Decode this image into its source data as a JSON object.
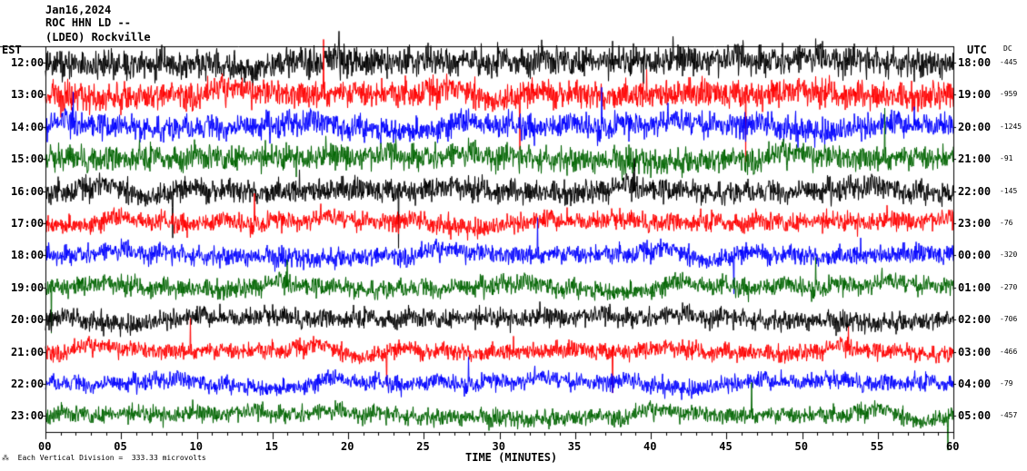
{
  "header": {
    "date": "Jan16,2024",
    "station": "ROC HHN LD --",
    "network": "(LDEO) Rockville"
  },
  "left_timezone": "EST",
  "right_timezone": "UTC",
  "dc_header": "DC",
  "x_axis_label": "TIME (MINUTES)",
  "footer_note": "Each Vertical Division =  333.33 microvolts",
  "trace_colors": [
    "#000000",
    "#ff0000",
    "#0000ff",
    "#006400"
  ],
  "chart_data": {
    "type": "line",
    "xlabel": "TIME (MINUTES)",
    "xlim": [
      0,
      60
    ],
    "x_ticks": [
      "00",
      "05",
      "10",
      "15",
      "20",
      "25",
      "30",
      "35",
      "40",
      "45",
      "50",
      "55",
      "60"
    ],
    "left_time_labels": [
      "12:00",
      "13:00",
      "14:00",
      "15:00",
      "16:00",
      "17:00",
      "18:00",
      "19:00",
      "20:00",
      "21:00",
      "22:00",
      "23:00"
    ],
    "right_time_labels": [
      "18:00",
      "19:00",
      "20:00",
      "21:00",
      "22:00",
      "23:00",
      "00:00",
      "01:00",
      "02:00",
      "03:00",
      "04:00",
      "05:00"
    ],
    "dc_offsets": [
      "-445",
      "-959",
      "-1245",
      "-91",
      "-145",
      "-76",
      "-320",
      "-270",
      "-706",
      "-466",
      "-79",
      "-457"
    ],
    "series": [
      {
        "values": []
      }
    ]
  }
}
